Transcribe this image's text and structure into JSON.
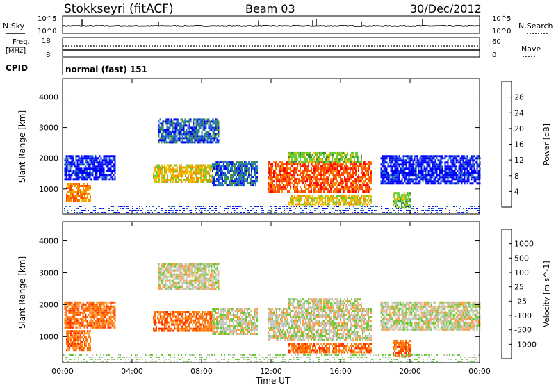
{
  "header": {
    "station": "Stokkseyri (fitACF)",
    "beam": "Beam 03",
    "date": "30/Dec/2012"
  },
  "top_panels": {
    "nsky_label": "N.Sky",
    "nsearch_label": "N.Search",
    "freq_label_1": "Freq.",
    "freq_label_2": "[MHz]",
    "nave_label": "Nave",
    "cpid_label": "CPID",
    "cpid_value": "normal (fast) 151",
    "nsky_ticks": [
      "10^5",
      "10^0"
    ],
    "nsearch_ticks": [
      "10^5",
      "10^0"
    ],
    "freq_ticks": [
      "18",
      "8"
    ],
    "nave_ticks": [
      "60",
      "0"
    ]
  },
  "chart_data": [
    {
      "type": "heatmap",
      "name": "power-panel",
      "ylabel": "Slant Range [km]",
      "xlabel": "Time UT",
      "colorbar_label": "Power [dB]",
      "ylim": [
        180,
        4600
      ],
      "yticks": [
        1000,
        2000,
        3000,
        4000
      ],
      "xlim": [
        0,
        24
      ],
      "xticks": [
        "00:00",
        "04:00",
        "08:00",
        "12:00",
        "16:00",
        "20:00",
        "00:00"
      ],
      "colorbar_ticks": [
        "4",
        "8",
        "12",
        "16",
        "20",
        "24",
        "28"
      ],
      "colors": [
        "#0000ff",
        "#1f6fc0",
        "#3f8f3f",
        "#66cc33",
        "#f0c000",
        "#ff8c00",
        "#ff4a00",
        "#ff0000"
      ],
      "echo_regions": [
        {
          "t0": 0.1,
          "t1": 3.0,
          "r0": 1300,
          "r1": 2100,
          "level": 0
        },
        {
          "t0": 0.2,
          "t1": 1.6,
          "r0": 600,
          "r1": 1200,
          "level": 5
        },
        {
          "t0": 5.2,
          "t1": 8.6,
          "r0": 1200,
          "r1": 1800,
          "level": 4
        },
        {
          "t0": 8.6,
          "t1": 11.2,
          "r0": 1100,
          "r1": 1900,
          "level": 1
        },
        {
          "t0": 11.8,
          "t1": 17.8,
          "r0": 900,
          "r1": 1900,
          "level": 6
        },
        {
          "t0": 13.0,
          "t1": 17.2,
          "r0": 1900,
          "r1": 2200,
          "level": 3
        },
        {
          "t0": 13.0,
          "t1": 17.8,
          "r0": 500,
          "r1": 800,
          "level": 4
        },
        {
          "t0": 18.3,
          "t1": 24.0,
          "r0": 1200,
          "r1": 2100,
          "level": 0
        },
        {
          "t0": 19.0,
          "t1": 20.0,
          "r0": 400,
          "r1": 900,
          "level": 3
        },
        {
          "t0": 5.5,
          "t1": 9.0,
          "r0": 2500,
          "r1": 3300,
          "level": 1
        }
      ]
    },
    {
      "type": "heatmap",
      "name": "velocity-panel",
      "ylabel": "Slant Range [km]",
      "xlabel": "Time UT",
      "colorbar_label": "Velocity [m s^-1]",
      "ylim": [
        180,
        4600
      ],
      "yticks": [
        1000,
        2000,
        3000,
        4000
      ],
      "xlim": [
        0,
        24
      ],
      "xticks": [
        "00:00",
        "04:00",
        "08:00",
        "12:00",
        "16:00",
        "20:00",
        "00:00"
      ],
      "colorbar_ticks": [
        "1000",
        "500",
        "100",
        "25",
        "-25",
        "-100",
        "-500",
        "-1000"
      ],
      "colors": [
        "#1f3fc0",
        "#2f6fa0",
        "#3f8f4f",
        "#66cc33",
        "#c8c8c0",
        "#ffa040",
        "#ff7000",
        "#ff3000",
        "#ff0000"
      ],
      "echo_regions": [
        {
          "t0": 0.1,
          "t1": 3.0,
          "r0": 1300,
          "r1": 2100,
          "level": 6
        },
        {
          "t0": 0.2,
          "t1": 1.6,
          "r0": 600,
          "r1": 1200,
          "level": 6
        },
        {
          "t0": 5.2,
          "t1": 8.6,
          "r0": 1200,
          "r1": 1800,
          "level": 6
        },
        {
          "t0": 8.6,
          "t1": 11.2,
          "r0": 1100,
          "r1": 1900,
          "level": 4
        },
        {
          "t0": 11.8,
          "t1": 17.8,
          "r0": 900,
          "r1": 1900,
          "level": 4
        },
        {
          "t0": 13.0,
          "t1": 17.2,
          "r0": 1900,
          "r1": 2200,
          "level": 4
        },
        {
          "t0": 13.0,
          "t1": 17.8,
          "r0": 500,
          "r1": 800,
          "level": 6
        },
        {
          "t0": 18.3,
          "t1": 24.0,
          "r0": 1200,
          "r1": 2100,
          "level": 4
        },
        {
          "t0": 19.0,
          "t1": 20.0,
          "r0": 400,
          "r1": 900,
          "level": 6
        },
        {
          "t0": 5.5,
          "t1": 9.0,
          "r0": 2500,
          "r1": 3300,
          "level": 4
        }
      ]
    }
  ]
}
